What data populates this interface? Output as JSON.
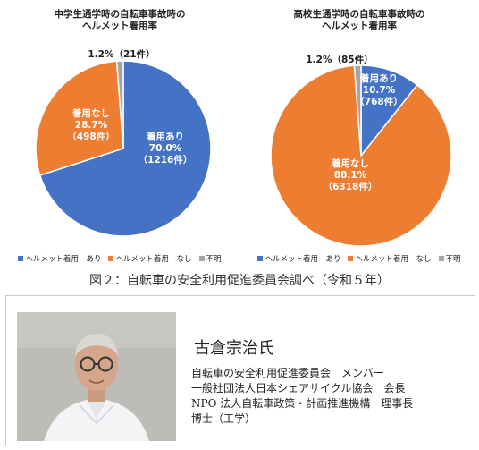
{
  "chart_data": [
    {
      "type": "pie",
      "title": "中学生通学時の自転車事故時の\nヘルメット着用率",
      "series": [
        {
          "name": "ヘルメット着用　あり",
          "value": 70.0,
          "count": 1216,
          "label": [
            "着用あり",
            "70.0%",
            "（1216件）"
          ],
          "color": "#4472c4"
        },
        {
          "name": "ヘルメット着用　なし",
          "value": 28.7,
          "count": 498,
          "label": [
            "着用なし",
            "28.7%",
            "（498件）"
          ],
          "color": "#ed7d31"
        },
        {
          "name": "不明",
          "value": 1.2,
          "count": 21,
          "label": [
            "1.2%（21件）"
          ],
          "color": "#a5a5a5"
        }
      ],
      "legend_position": "bottom"
    },
    {
      "type": "pie",
      "title": "高校生通学時の自転車事故時の\nヘルメット着用率",
      "series": [
        {
          "name": "ヘルメット着用　あり",
          "value": 10.7,
          "count": 768,
          "label": [
            "着用あり",
            "10.7%",
            "（768件）"
          ],
          "color": "#4472c4"
        },
        {
          "name": "ヘルメット着用　なし",
          "value": 88.1,
          "count": 6318,
          "label": [
            "着用なし",
            "88.1%",
            "（6318件）"
          ],
          "color": "#ed7d31"
        },
        {
          "name": "不明",
          "value": 1.2,
          "count": 85,
          "label": [
            "1.2%（85件）"
          ],
          "color": "#a5a5a5"
        }
      ],
      "legend_position": "bottom"
    }
  ],
  "caption": "図２：自転車の安全利用促進委員会調べ（令和５年）",
  "profile": {
    "name": "古倉宗治氏",
    "lines": [
      "自転車の安全利用促進委員会　メンバー",
      "一般社団法人日本シェアサイクル協会　会長",
      "NPO 法人自転車政策・計画推進機構　理事長",
      "博士（工学）"
    ]
  }
}
